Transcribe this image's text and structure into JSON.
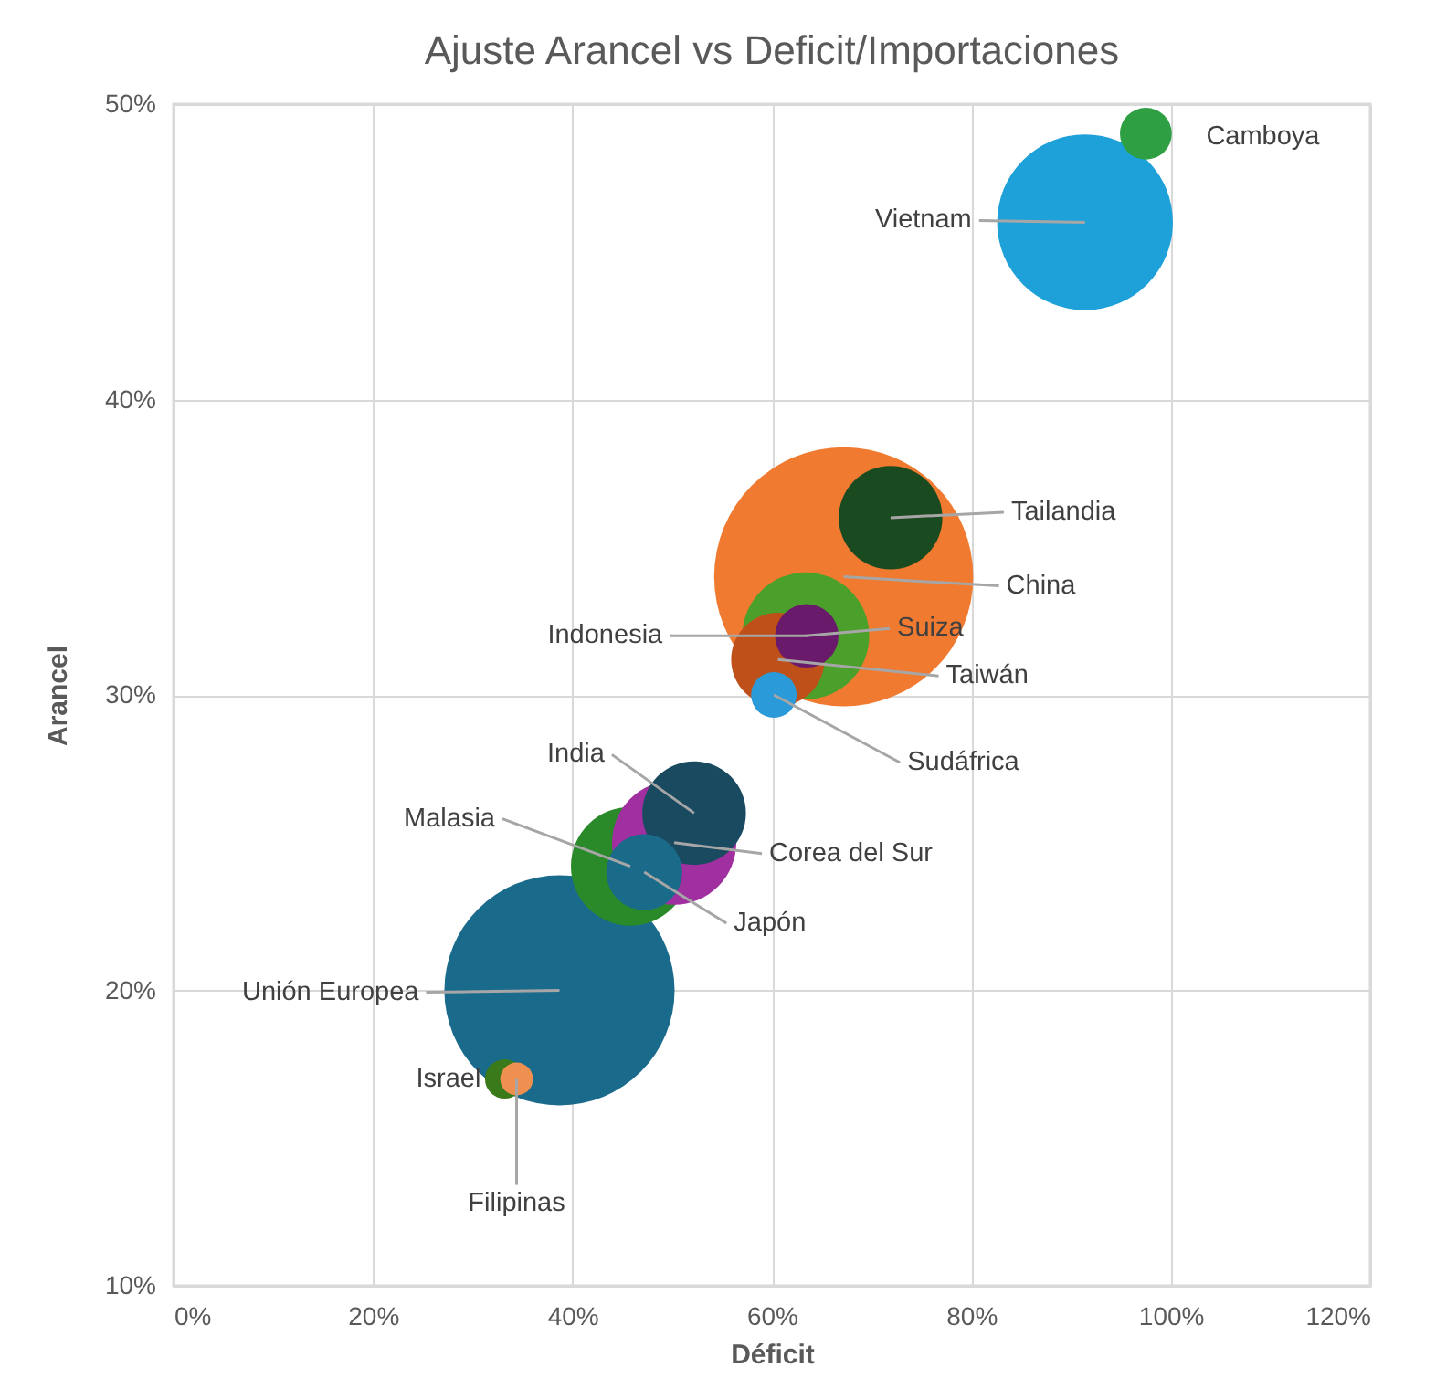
{
  "chart_data": {
    "type": "bubble",
    "title": "Ajuste Arancel vs Deficit/Importaciones",
    "xlabel": "Déficit",
    "ylabel": "Arancel",
    "xlim": [
      0,
      120
    ],
    "xticks": [
      {
        "value": 0,
        "label": "0%"
      },
      {
        "value": 20,
        "label": "20%"
      },
      {
        "value": 40,
        "label": "40%"
      },
      {
        "value": 60,
        "label": "60%"
      },
      {
        "value": 80,
        "label": "80%"
      },
      {
        "value": 100,
        "label": "100%"
      },
      {
        "value": 120,
        "label": "120%"
      }
    ],
    "ylim": [
      10,
      50
    ],
    "yticks": [
      {
        "value": 10,
        "label": "10%"
      },
      {
        "value": 20,
        "label": "20%"
      },
      {
        "value": 30,
        "label": "30%"
      },
      {
        "value": 40,
        "label": "40%"
      },
      {
        "value": 50,
        "label": "50%"
      }
    ],
    "grid": true,
    "legend": false,
    "series": [
      {
        "name": "Unión Europea",
        "color": "#1a6a8c",
        "x": [
          38.7
        ],
        "values": [
          20.0
        ],
        "sizes": [
          0.79
        ]
      },
      {
        "name": "China",
        "color": "#f07a30",
        "x": [
          67.2
        ],
        "values": [
          34.0
        ],
        "sizes": [
          1
        ]
      },
      {
        "name": "Vietnam",
        "color": "#1ea0d8",
        "x": [
          91.4
        ],
        "values": [
          46.0
        ],
        "sizes": [
          0.46
        ]
      },
      {
        "name": "Suiza",
        "color": "#4aa02a",
        "x": [
          63.4
        ],
        "values": [
          32.0
        ],
        "sizes": [
          0.24
        ]
      },
      {
        "name": "Malasia",
        "color": "#2a8a2a",
        "x": [
          45.8
        ],
        "values": [
          24.2
        ],
        "sizes": [
          0.21
        ]
      },
      {
        "name": "Corea del Sur",
        "color": "#a030a0",
        "x": [
          50.2
        ],
        "values": [
          25.0
        ],
        "sizes": [
          0.23
        ]
      },
      {
        "name": "Taiwán",
        "color": "#c0501a",
        "x": [
          60.6
        ],
        "values": [
          31.2
        ],
        "sizes": [
          0.13
        ]
      },
      {
        "name": "India",
        "color": "#1a4a60",
        "x": [
          52.2
        ],
        "values": [
          26.0
        ],
        "sizes": [
          0.16
        ]
      },
      {
        "name": "Tailandia",
        "color": "#1a4a20",
        "x": [
          71.9
        ],
        "values": [
          36.0
        ],
        "sizes": [
          0.16
        ]
      },
      {
        "name": "Japón",
        "color": "#1a6a8a",
        "x": [
          47.2
        ],
        "values": [
          24.0
        ],
        "sizes": [
          0.086
        ]
      },
      {
        "name": "Indonesia",
        "color": "#6a1a6a",
        "x": [
          63.5
        ],
        "values": [
          32.0
        ],
        "sizes": [
          0.06
        ]
      },
      {
        "name": "Sudáfrica",
        "color": "#2a9ad8",
        "x": [
          60.2
        ],
        "values": [
          30.0
        ],
        "sizes": [
          0.031
        ]
      },
      {
        "name": "Camboya",
        "color": "#2ea043",
        "x": [
          97.5
        ],
        "values": [
          49.0
        ],
        "sizes": [
          0.04
        ]
      },
      {
        "name": "Israel",
        "color": "#3a7a1a",
        "x": [
          33.2
        ],
        "values": [
          17.0
        ],
        "sizes": [
          0.023
        ]
      },
      {
        "name": "Filipinas",
        "color": "#f09050",
        "x": [
          34.4
        ],
        "values": [
          17.0
        ],
        "sizes": [
          0.016
        ]
      }
    ]
  }
}
